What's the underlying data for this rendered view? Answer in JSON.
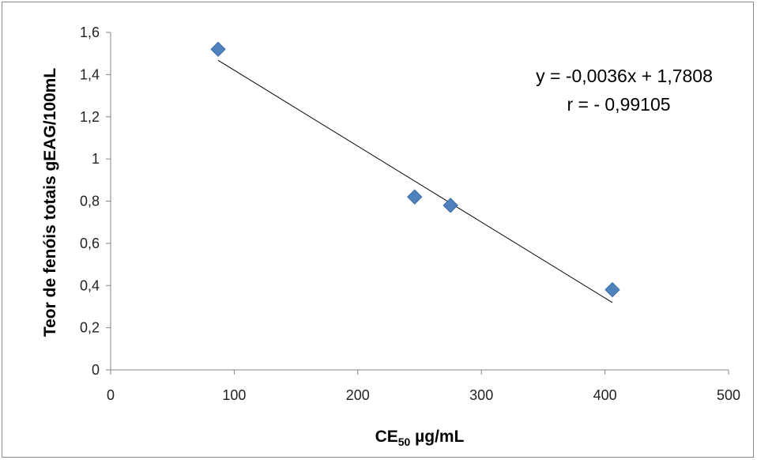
{
  "chart_data": {
    "type": "scatter",
    "x": [
      87,
      246,
      275,
      406
    ],
    "y": [
      1.52,
      0.82,
      0.78,
      0.38
    ],
    "marker_color": "#4f81bd",
    "trendline": {
      "slope": -0.0036,
      "intercept": 1.7808,
      "x_range": [
        87,
        406
      ],
      "color": "#000000"
    },
    "xlim": [
      0,
      500
    ],
    "ylim": [
      0,
      1.6
    ],
    "xticks": [
      "0",
      "100",
      "200",
      "300",
      "400",
      "500"
    ],
    "yticks": [
      "0",
      "0,2",
      "0,4",
      "0,6",
      "0,8",
      "1",
      "1,2",
      "1,4",
      "1,6"
    ],
    "xlabel_main": "CE",
    "xlabel_sub": "50",
    "xlabel_rest": " µg/mL",
    "ylabel": "Teor de fenóis totais gEAG/100mL",
    "equation": "y = -0,0036x + 1,7808",
    "r_value": "r = - 0,99105",
    "grid": false,
    "legend": "none"
  }
}
